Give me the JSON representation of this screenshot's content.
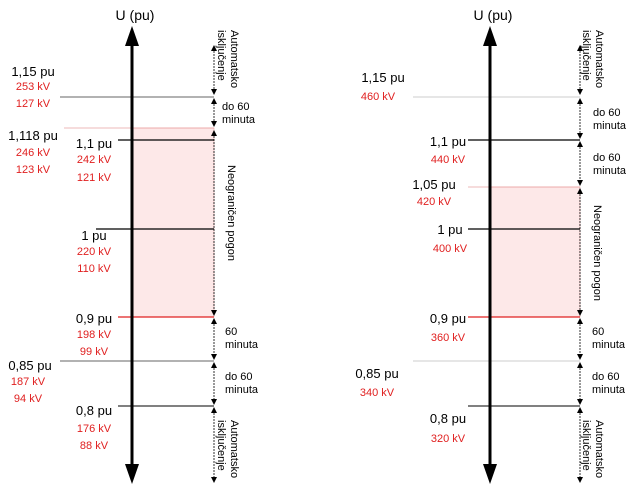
{
  "colors": {
    "accent": "#e02020",
    "zone_fill": "#fde8e8",
    "axis": "#000000",
    "grid": "#bbbbbb"
  },
  "left": {
    "axis_label": "U (pu)",
    "levels": [
      {
        "pu": "1,15 pu",
        "kv": [
          "253 kV",
          "127 kV"
        ]
      },
      {
        "pu": "1,118 pu",
        "kv": [
          "246 kV",
          "123 kV"
        ]
      },
      {
        "pu": "1,1 pu",
        "kv": [
          "242 kV",
          "121 kV"
        ]
      },
      {
        "pu": "1 pu",
        "kv": [
          "220 kV",
          "110 kV"
        ]
      },
      {
        "pu": "0,9 pu",
        "kv": [
          "198 kV",
          "99 kV"
        ]
      },
      {
        "pu": "0,85 pu",
        "kv": [
          "187 kV",
          "94 kV"
        ]
      },
      {
        "pu": "0,8 pu",
        "kv": [
          "176 kV",
          "88 kV"
        ]
      }
    ],
    "ranges": {
      "top_trip": "Automatsko isključenje",
      "upper_limit": "do 60 minuta",
      "normal": "Neograničen pogon",
      "lower_limit": "60 minuta",
      "lower_limit2": "do 60 minuta",
      "bottom_trip": "Automatsko isključenje"
    }
  },
  "right": {
    "axis_label": "U (pu)",
    "levels": [
      {
        "pu": "1,15 pu",
        "kv": [
          "460 kV"
        ]
      },
      {
        "pu": "1,1 pu",
        "kv": [
          "440 kV"
        ]
      },
      {
        "pu": "1,05 pu",
        "kv": [
          "420 kV"
        ]
      },
      {
        "pu": "1 pu",
        "kv": [
          "400 kV"
        ]
      },
      {
        "pu": "0,9 pu",
        "kv": [
          "360 kV"
        ]
      },
      {
        "pu": "0,85 pu",
        "kv": [
          "340 kV"
        ]
      },
      {
        "pu": "0,8 pu",
        "kv": [
          "320 kV"
        ]
      }
    ],
    "ranges": {
      "top_trip": "Automatsko isključenje",
      "upper_limit": "do 60 minuta",
      "upper_limit2": "do 60 minuta",
      "normal": "Neograničen pogon",
      "lower_limit": "60 minuta",
      "lower_limit2": "do 60 minuta",
      "bottom_trip": "Automatsko isključenje"
    }
  }
}
